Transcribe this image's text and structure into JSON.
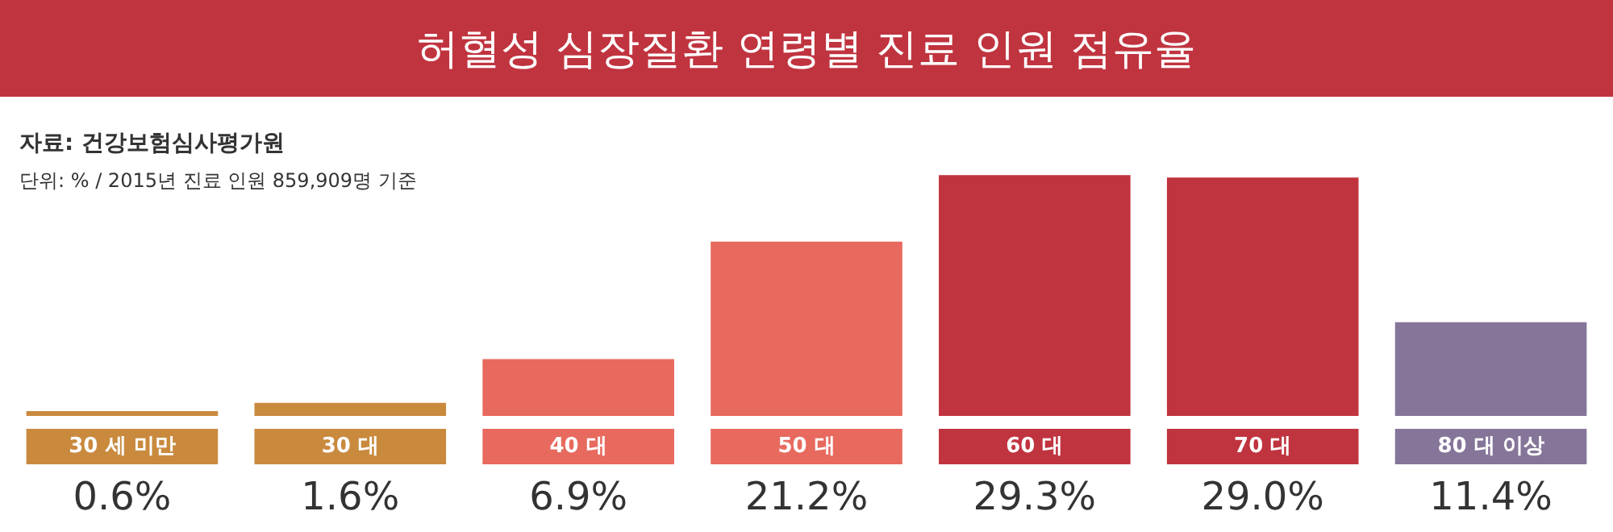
{
  "chart_data": {
    "type": "bar",
    "title": "허혈성 심장질환 연령별 진료 인원 점유율",
    "annotations": [
      "자료: 건강보험심사평가원",
      "단위: % / 2015년 진료 인원 859,909명 기준"
    ],
    "categories": [
      "30 세 미만",
      "30 대",
      "40 대",
      "50 대",
      "60 대",
      "70 대",
      "80 대 이상"
    ],
    "values": [
      0.6,
      1.6,
      6.9,
      21.2,
      29.3,
      29.0,
      11.4
    ],
    "colors": [
      "#c98a3e",
      "#c98a3e",
      "#e8695e",
      "#e8695e",
      "#c0343f",
      "#c0343f",
      "#857599"
    ],
    "value_labels": [
      "0.6%",
      "1.6%",
      "6.9%",
      "21.2%",
      "29.3%",
      "29.0%",
      "11.4%"
    ],
    "legend": false
  }
}
